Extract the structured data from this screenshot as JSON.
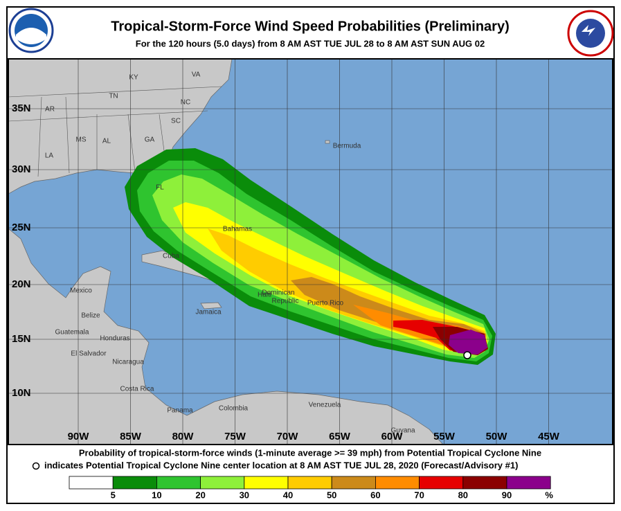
{
  "header": {
    "title": "Tropical-Storm-Force Wind Speed Probabilities (Preliminary)",
    "subtitle": "For the 120 hours (5.0 days) from 8 AM AST TUE JUL 28 to 8 AM AST SUN AUG 02"
  },
  "map": {
    "latitude_labels": [
      "35N",
      "30N",
      "25N",
      "20N",
      "15N",
      "10N"
    ],
    "longitude_labels": [
      "90W",
      "85W",
      "80W",
      "75W",
      "70W",
      "65W",
      "60W",
      "55W",
      "50W",
      "45W"
    ],
    "places": [
      "KY",
      "VA",
      "TN",
      "NC",
      "AR",
      "SC",
      "MS",
      "AL",
      "GA",
      "LA",
      "FL",
      "Bermuda",
      "Bahamas",
      "Cuba",
      "Haiti",
      "Dominican",
      "Republic",
      "Puerto Rico",
      "Jamaica",
      "Mexico",
      "Belize",
      "Guatemala",
      "Honduras",
      "El Salvador",
      "Nicaragua",
      "Costa Rica",
      "Panama",
      "Colombia",
      "Venezuela",
      "Guyana"
    ]
  },
  "caption": {
    "line1": "Probability of tropical-storm-force winds (1-minute average >= 39 mph) from Potential Tropical Cyclone Nine",
    "line2": "indicates Potential Tropical Cyclone Nine center location at 8 AM AST TUE JUL 28, 2020 (Forecast/Advisory #1)"
  },
  "legend": {
    "colors": [
      "#ffffff",
      "#0a8c0a",
      "#2fc42f",
      "#8ef03a",
      "#ffff00",
      "#ffcc00",
      "#cc8a1a",
      "#ff8c00",
      "#e60000",
      "#8b0000",
      "#8b008b"
    ],
    "labels": [
      "5",
      "10",
      "20",
      "30",
      "40",
      "50",
      "60",
      "70",
      "80",
      "90",
      "%"
    ]
  }
}
